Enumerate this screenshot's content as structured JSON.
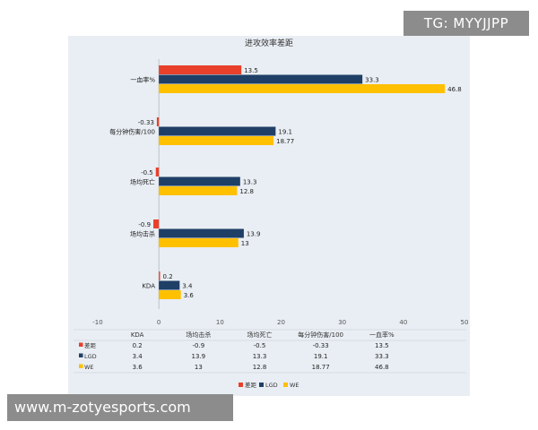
{
  "watermarks": {
    "top": "TG: MYYJJPP",
    "bottom": "www.m-zotyesports.com"
  },
  "chart_data": {
    "type": "bar",
    "orientation": "horizontal",
    "title": "进攻效率差距",
    "categories": [
      "一血率%",
      "每分钟伤害/100",
      "场均死亡",
      "场均击杀",
      "KDA"
    ],
    "table_categories": [
      "KDA",
      "场均击杀",
      "场均死亡",
      "每分钟伤害/100",
      "一血率%"
    ],
    "series": [
      {
        "name": "差距",
        "color": "#e8402a",
        "values": [
          13.5,
          -0.33,
          -0.5,
          -0.9,
          0.2
        ]
      },
      {
        "name": "LGD",
        "color": "#1f3f66",
        "values": [
          33.3,
          19.1,
          13.3,
          13.9,
          3.4
        ]
      },
      {
        "name": "WE",
        "color": "#ffc000",
        "values": [
          46.8,
          18.77,
          12.8,
          13,
          3.6
        ]
      }
    ],
    "bar_labels": [
      [
        "13.5",
        "-0.33",
        "-0.5",
        "-0.9",
        "0.2"
      ],
      [
        "33.3",
        "19.1",
        "13.3",
        "13.9",
        "3.4"
      ],
      [
        "46.8",
        "18.77",
        "12.8",
        "13",
        "3.6"
      ]
    ],
    "table_values": [
      [
        "0.2",
        "-0.9",
        "-0.5",
        "-0.33",
        "13.5"
      ],
      [
        "3.4",
        "13.9",
        "13.3",
        "19.1",
        "33.3"
      ],
      [
        "3.6",
        "13",
        "12.8",
        "18.77",
        "46.8"
      ]
    ],
    "xlim": [
      -10,
      50
    ],
    "xticks": [
      "-10",
      "0",
      "10",
      "20",
      "30",
      "40",
      "50"
    ],
    "grid": false,
    "legend_position": "bottom"
  }
}
